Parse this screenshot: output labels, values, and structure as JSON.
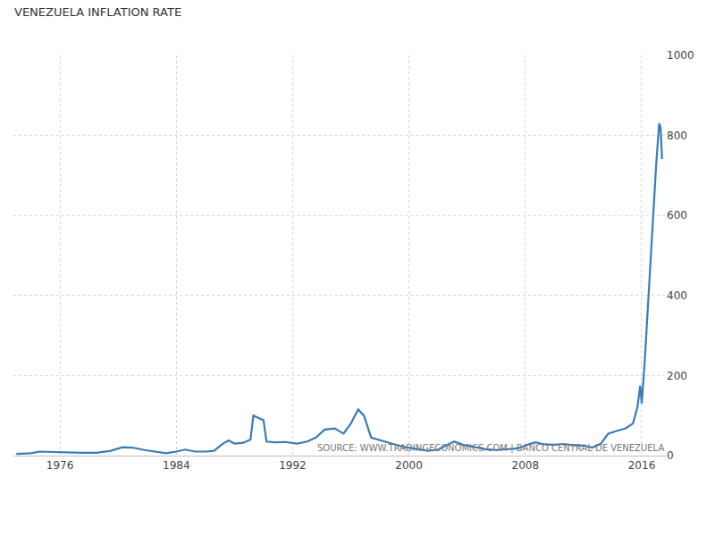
{
  "chart_data": {
    "type": "line",
    "title": "VENEZUELA INFLATION RATE",
    "annotations": [
      "SOURCE: WWW.TRADINGECONOMICS.COM | BANCO CENTRAL DE VENEZUELA"
    ],
    "color": "#3a7bb8",
    "x": [
      1973.0,
      1974.0,
      1974.6,
      1975.5,
      1976.5,
      1977.5,
      1978.5,
      1979.5,
      1980.3,
      1981.0,
      1981.8,
      1982.5,
      1983.3,
      1984.0,
      1984.6,
      1985.3,
      1986.0,
      1986.6,
      1987.2,
      1987.6,
      1988.0,
      1988.6,
      1989.1,
      1989.3,
      1989.6,
      1990.0,
      1990.2,
      1990.8,
      1991.5,
      1992.3,
      1993.0,
      1993.6,
      1994.2,
      1994.9,
      1995.5,
      1996.0,
      1996.5,
      1996.9,
      1997.4,
      1998.0,
      1998.8,
      1999.6,
      2000.5,
      2001.3,
      2002.0,
      2002.6,
      2003.1,
      2003.7,
      2004.5,
      2005.3,
      2006.0,
      2006.8,
      2007.5,
      2008.2,
      2008.7,
      2009.3,
      2010.0,
      2010.6,
      2011.3,
      2012.0,
      2012.6,
      2013.2,
      2013.7,
      2014.3,
      2014.9,
      2015.4,
      2015.7,
      2015.9,
      2016.0,
      2016.2,
      2016.5,
      2016.8,
      2017.0,
      2017.2,
      2017.3,
      2017.4
    ],
    "values": [
      4,
      6,
      10,
      9,
      7,
      7,
      7,
      12,
      21,
      20,
      14,
      10,
      6,
      10,
      15,
      10,
      10,
      12,
      30,
      38,
      30,
      32,
      40,
      100,
      95,
      88,
      35,
      33,
      34,
      30,
      35,
      45,
      65,
      68,
      55,
      80,
      115,
      100,
      45,
      38,
      30,
      22,
      16,
      12,
      15,
      25,
      35,
      27,
      22,
      16,
      14,
      17,
      18,
      28,
      33,
      28,
      27,
      29,
      26,
      25,
      20,
      30,
      55,
      62,
      68,
      80,
      120,
      175,
      130,
      230,
      420,
      600,
      730,
      830,
      820,
      741
    ],
    "xlim": [
      1972.8,
      2017.66
    ],
    "xticks": [
      1976,
      1984,
      1992,
      2000,
      2008,
      2016
    ],
    "ylim": [
      0,
      1000
    ],
    "yticks": [
      0,
      200,
      400,
      600,
      800,
      1000
    ],
    "grid": true
  }
}
